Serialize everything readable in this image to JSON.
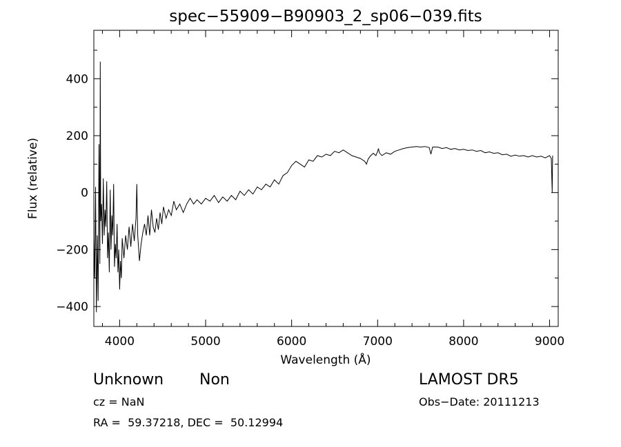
{
  "chart_data": {
    "type": "line",
    "title": "spec−55909−B90903_2_sp06−039.fits",
    "xlabel": "Wavelength (Å)",
    "ylabel": "Flux (relative)",
    "xlim": [
      3700,
      9100
    ],
    "ylim": [
      -470,
      570
    ],
    "x_ticks": [
      4000,
      5000,
      6000,
      7000,
      8000,
      9000
    ],
    "y_ticks": [
      -400,
      -200,
      0,
      200,
      400
    ],
    "x_minor_step": 200,
    "y_minor_step": 100,
    "grid": false,
    "series": [
      {
        "points": [
          [
            3700,
            -160
          ],
          [
            3710,
            -300
          ],
          [
            3720,
            20
          ],
          [
            3730,
            -420
          ],
          [
            3740,
            -150
          ],
          [
            3750,
            -380
          ],
          [
            3760,
            170
          ],
          [
            3770,
            -250
          ],
          [
            3775,
            460
          ],
          [
            3780,
            -100
          ],
          [
            3790,
            -40
          ],
          [
            3800,
            -180
          ],
          [
            3810,
            50
          ],
          [
            3820,
            -150
          ],
          [
            3830,
            -60
          ],
          [
            3840,
            -120
          ],
          [
            3850,
            40
          ],
          [
            3860,
            -230
          ],
          [
            3870,
            -140
          ],
          [
            3880,
            -280
          ],
          [
            3890,
            10
          ],
          [
            3900,
            -200
          ],
          [
            3910,
            -80
          ],
          [
            3920,
            -150
          ],
          [
            3930,
            30
          ],
          [
            3940,
            -260
          ],
          [
            3950,
            -180
          ],
          [
            3960,
            -230
          ],
          [
            3970,
            -110
          ],
          [
            3980,
            -280
          ],
          [
            3990,
            -200
          ],
          [
            4000,
            -340
          ],
          [
            4010,
            -240
          ],
          [
            4020,
            -300
          ],
          [
            4030,
            -160
          ],
          [
            4050,
            -230
          ],
          [
            4070,
            -150
          ],
          [
            4090,
            -200
          ],
          [
            4110,
            -120
          ],
          [
            4130,
            -190
          ],
          [
            4150,
            -110
          ],
          [
            4170,
            -170
          ],
          [
            4190,
            -90
          ],
          [
            4200,
            30
          ],
          [
            4210,
            -150
          ],
          [
            4230,
            -240
          ],
          [
            4250,
            -180
          ],
          [
            4270,
            -140
          ],
          [
            4290,
            -110
          ],
          [
            4310,
            -150
          ],
          [
            4330,
            -80
          ],
          [
            4350,
            -150
          ],
          [
            4370,
            -60
          ],
          [
            4390,
            -120
          ],
          [
            4410,
            -140
          ],
          [
            4430,
            -90
          ],
          [
            4450,
            -130
          ],
          [
            4470,
            -70
          ],
          [
            4490,
            -110
          ],
          [
            4510,
            -50
          ],
          [
            4540,
            -90
          ],
          [
            4570,
            -60
          ],
          [
            4600,
            -80
          ],
          [
            4630,
            -30
          ],
          [
            4660,
            -60
          ],
          [
            4700,
            -40
          ],
          [
            4740,
            -70
          ],
          [
            4780,
            -40
          ],
          [
            4820,
            -20
          ],
          [
            4860,
            -40
          ],
          [
            4900,
            -25
          ],
          [
            4950,
            -40
          ],
          [
            5000,
            -20
          ],
          [
            5050,
            -30
          ],
          [
            5100,
            -10
          ],
          [
            5150,
            -35
          ],
          [
            5200,
            -15
          ],
          [
            5250,
            -30
          ],
          [
            5300,
            -10
          ],
          [
            5350,
            -25
          ],
          [
            5400,
            5
          ],
          [
            5450,
            -10
          ],
          [
            5500,
            10
          ],
          [
            5550,
            -5
          ],
          [
            5600,
            20
          ],
          [
            5650,
            10
          ],
          [
            5700,
            30
          ],
          [
            5750,
            20
          ],
          [
            5800,
            45
          ],
          [
            5850,
            30
          ],
          [
            5900,
            60
          ],
          [
            5950,
            70
          ],
          [
            6000,
            95
          ],
          [
            6050,
            110
          ],
          [
            6100,
            100
          ],
          [
            6150,
            90
          ],
          [
            6200,
            115
          ],
          [
            6250,
            110
          ],
          [
            6300,
            130
          ],
          [
            6350,
            125
          ],
          [
            6400,
            135
          ],
          [
            6450,
            130
          ],
          [
            6500,
            145
          ],
          [
            6550,
            140
          ],
          [
            6600,
            150
          ],
          [
            6650,
            140
          ],
          [
            6700,
            130
          ],
          [
            6750,
            125
          ],
          [
            6800,
            120
          ],
          [
            6850,
            110
          ],
          [
            6870,
            100
          ],
          [
            6890,
            118
          ],
          [
            6920,
            130
          ],
          [
            6950,
            138
          ],
          [
            6980,
            130
          ],
          [
            7000,
            145
          ],
          [
            7010,
            155
          ],
          [
            7020,
            140
          ],
          [
            7050,
            130
          ],
          [
            7100,
            140
          ],
          [
            7150,
            135
          ],
          [
            7200,
            145
          ],
          [
            7250,
            150
          ],
          [
            7300,
            155
          ],
          [
            7350,
            158
          ],
          [
            7400,
            160
          ],
          [
            7450,
            162
          ],
          [
            7500,
            160
          ],
          [
            7550,
            162
          ],
          [
            7600,
            158
          ],
          [
            7620,
            135
          ],
          [
            7640,
            160
          ],
          [
            7700,
            160
          ],
          [
            7750,
            155
          ],
          [
            7800,
            158
          ],
          [
            7850,
            152
          ],
          [
            7900,
            155
          ],
          [
            7950,
            150
          ],
          [
            8000,
            152
          ],
          [
            8050,
            148
          ],
          [
            8100,
            150
          ],
          [
            8150,
            145
          ],
          [
            8200,
            148
          ],
          [
            8250,
            140
          ],
          [
            8300,
            143
          ],
          [
            8350,
            138
          ],
          [
            8400,
            140
          ],
          [
            8450,
            133
          ],
          [
            8500,
            135
          ],
          [
            8550,
            128
          ],
          [
            8600,
            132
          ],
          [
            8650,
            128
          ],
          [
            8700,
            130
          ],
          [
            8750,
            125
          ],
          [
            8800,
            130
          ],
          [
            8850,
            125
          ],
          [
            8900,
            128
          ],
          [
            8950,
            122
          ],
          [
            9000,
            130
          ],
          [
            9020,
            120
          ],
          [
            9030,
            0
          ],
          [
            9035,
            130
          ]
        ]
      }
    ]
  },
  "info": {
    "class": "Unknown",
    "subclass": "Non",
    "cz": "cz = NaN",
    "radec": "RA =  59.37218, DEC =  50.12994",
    "survey": "LAMOST DR5",
    "obs_date": "Obs−Date: 20111213"
  }
}
